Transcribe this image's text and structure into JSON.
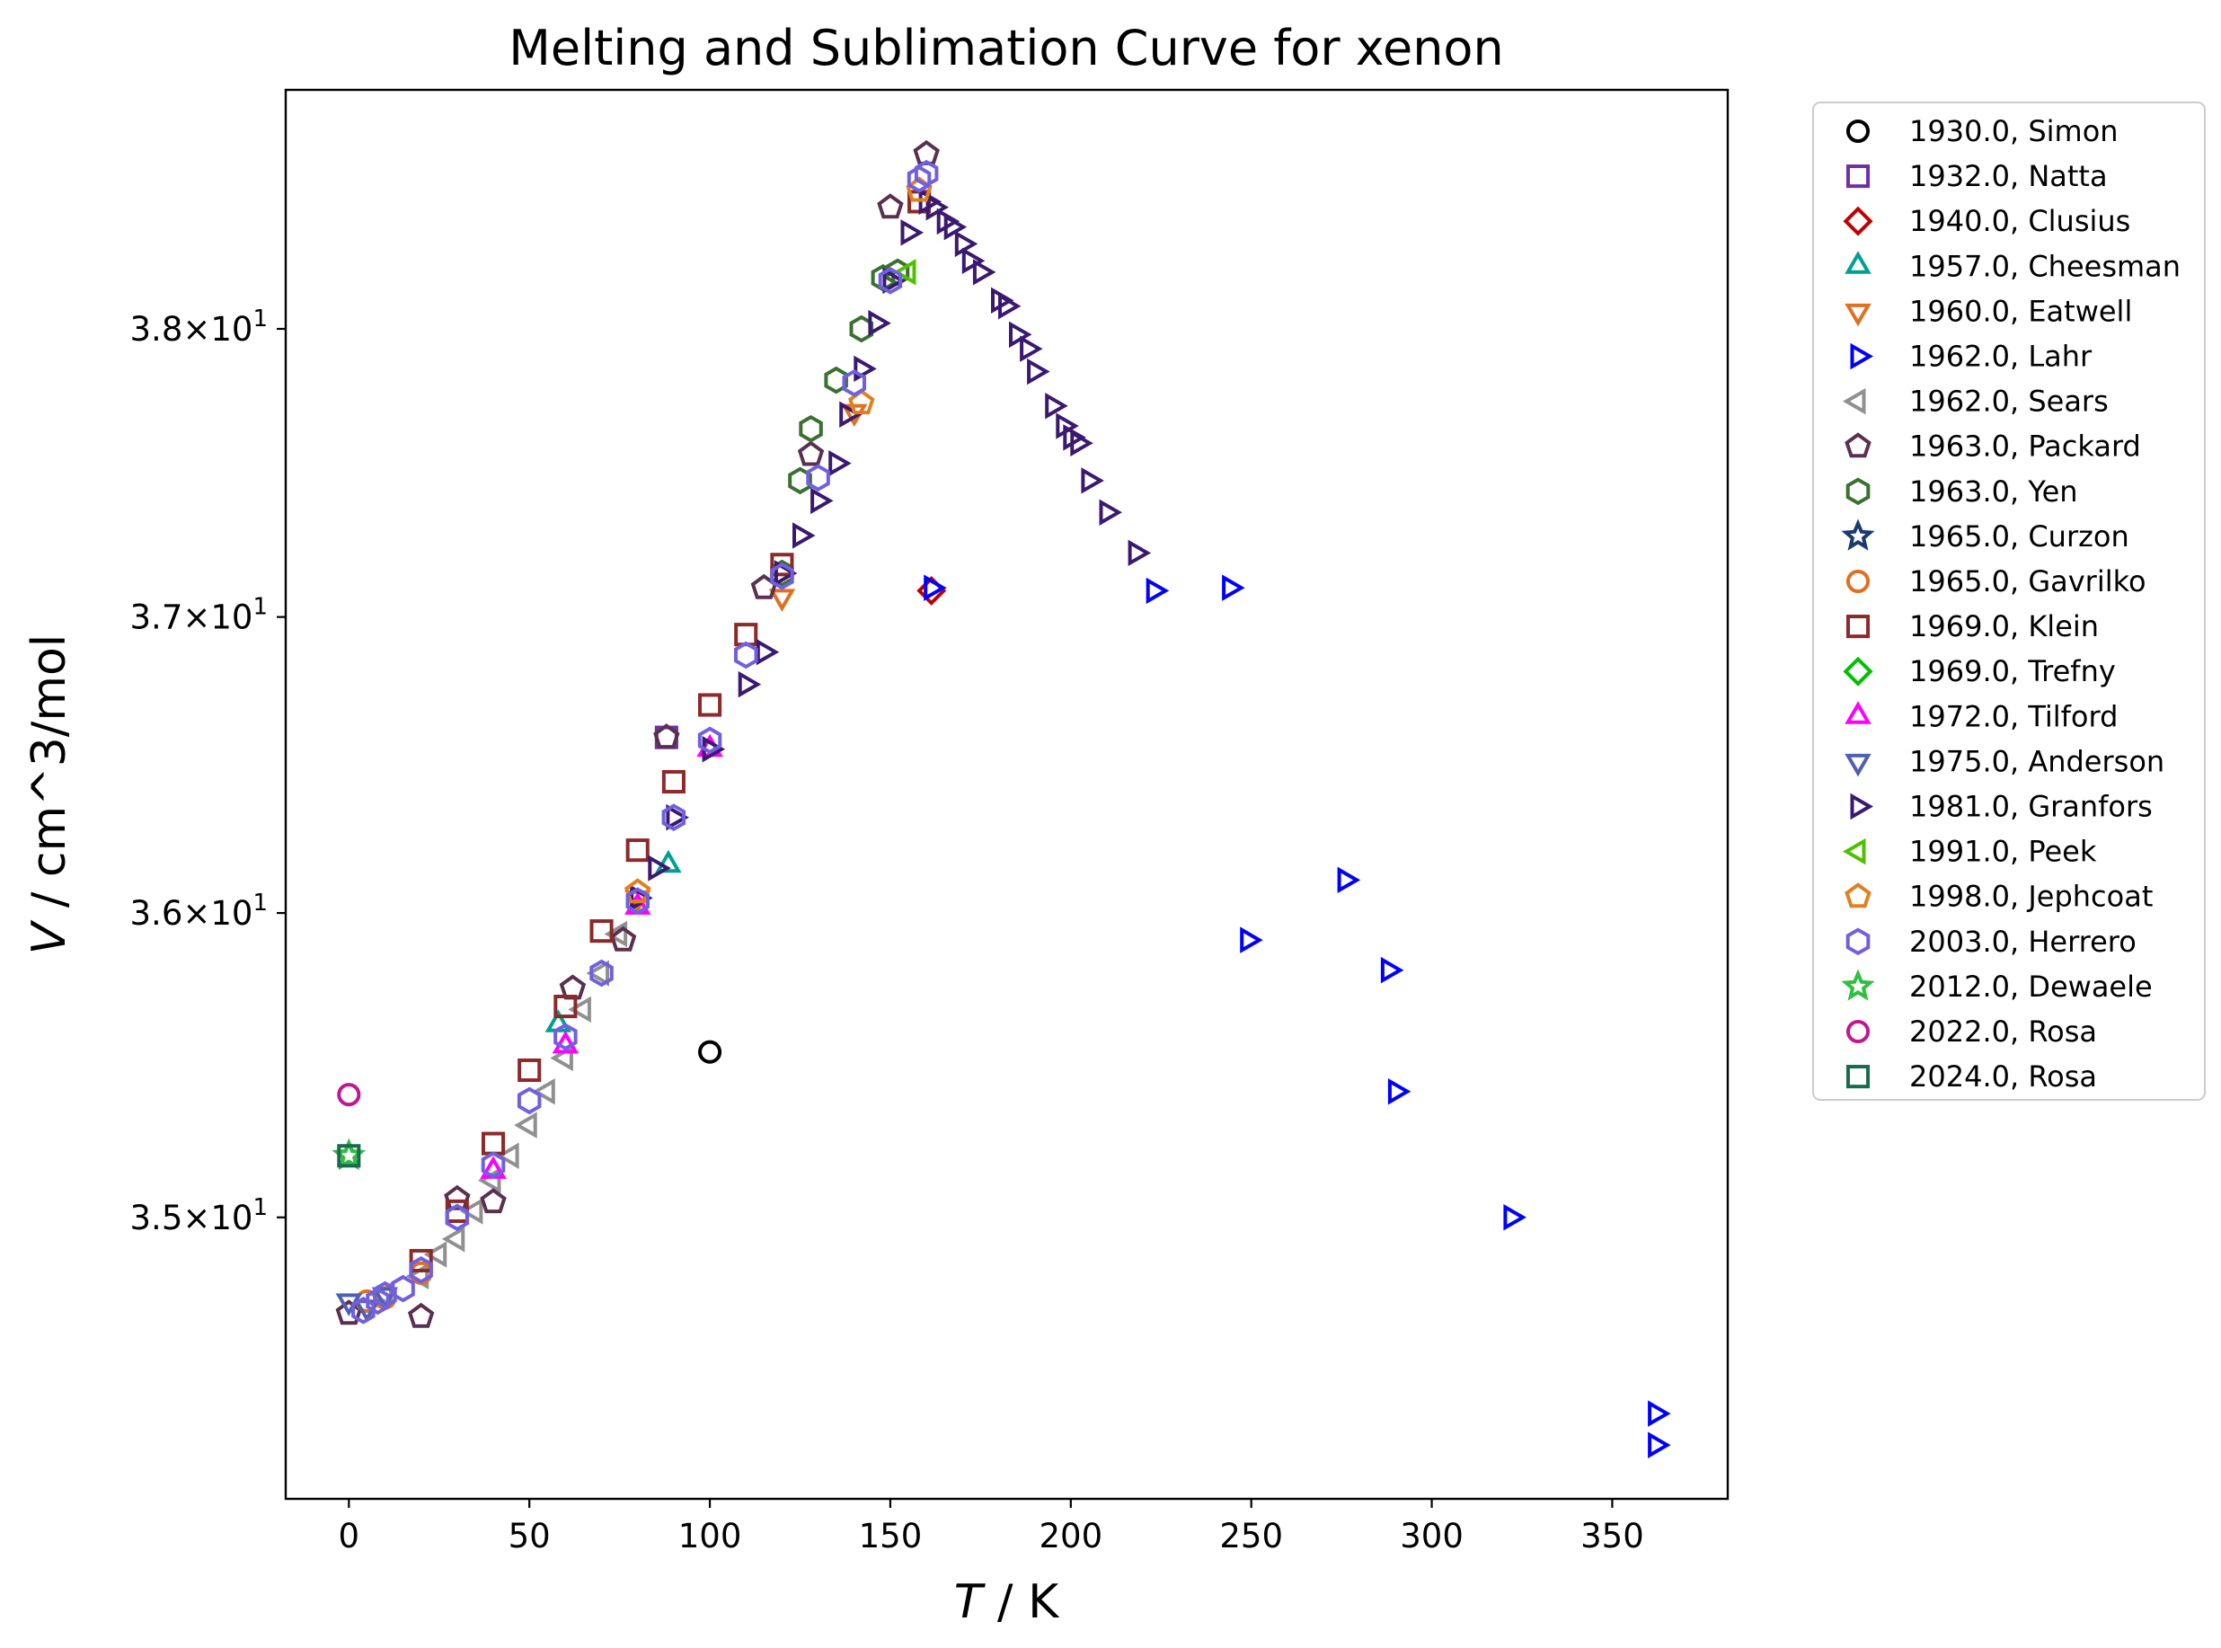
{
  "chart_data": {
    "type": "scatter",
    "title": "Melting and Sublimation Curve for xenon",
    "xlabel_var": "T",
    "xlabel_unit": " / K",
    "ylabel_var": "V",
    "ylabel_unit": " / cm^3/mol",
    "y_scale": "log",
    "xlim": [
      -17.5,
      382
    ],
    "ylim": [
      34.1,
      38.85
    ],
    "grid": false,
    "legend_position": "outside-right",
    "x_ticks": [
      0,
      50,
      100,
      150,
      200,
      250,
      300,
      350
    ],
    "y_ticks": [
      {
        "value": 35,
        "mantissa": "3.5",
        "exp": "1"
      },
      {
        "value": 36,
        "mantissa": "3.6",
        "exp": "1"
      },
      {
        "value": 37,
        "mantissa": "3.7",
        "exp": "1"
      },
      {
        "value": 38,
        "mantissa": "3.8",
        "exp": "1"
      }
    ],
    "series": [
      {
        "name": "1930.0, Simon",
        "marker": "circle",
        "color": "#000000",
        "points": [
          [
            100,
            35.54
          ]
        ]
      },
      {
        "name": "1932.0, Natta",
        "marker": "square",
        "color": "#7030a0",
        "points": [
          [
            88,
            36.59
          ]
        ]
      },
      {
        "name": "1940.0, Clusius",
        "marker": "diamond",
        "color": "#c00000",
        "points": [
          [
            161.4,
            37.09
          ]
        ]
      },
      {
        "name": "1957.0, Cheesman",
        "marker": "triangle-up",
        "color": "#00a090",
        "points": [
          [
            58,
            35.63
          ],
          [
            88.5,
            36.16
          ]
        ]
      },
      {
        "name": "1960.0, Eatwell",
        "marker": "triangle-down",
        "color": "#e07020",
        "points": [
          [
            80,
            36.05
          ],
          [
            120,
            37.07
          ],
          [
            140,
            37.71
          ]
        ]
      },
      {
        "name": "1962.0, Lahr",
        "marker": "triangle-right",
        "color": "#0000ff",
        "points": [
          [
            161.4,
            37.1
          ],
          [
            223,
            37.09
          ],
          [
            244,
            37.1
          ],
          [
            276,
            36.11
          ],
          [
            249,
            35.91
          ],
          [
            288,
            35.81
          ],
          [
            290,
            35.41
          ],
          [
            322,
            35.0
          ],
          [
            362,
            34.37
          ],
          [
            362,
            34.27
          ]
        ]
      },
      {
        "name": "1962.0, Sears",
        "marker": "triangle-left",
        "color": "#909090",
        "points": [
          [
            10,
            34.75
          ],
          [
            20,
            34.81
          ],
          [
            25,
            34.88
          ],
          [
            30,
            34.93
          ],
          [
            35,
            35.02
          ],
          [
            40,
            35.12
          ],
          [
            45,
            35.2
          ],
          [
            50,
            35.3
          ],
          [
            55,
            35.41
          ],
          [
            60,
            35.52
          ],
          [
            65,
            35.68
          ],
          [
            70,
            35.8
          ],
          [
            75,
            35.93
          ]
        ]
      },
      {
        "name": "1963.0, Packard",
        "marker": "pentagon",
        "color": "#5a3050",
        "points": [
          [
            0,
            34.69
          ],
          [
            20,
            34.68
          ],
          [
            30,
            35.06
          ],
          [
            40,
            35.05
          ],
          [
            62,
            35.75
          ],
          [
            76,
            35.91
          ],
          [
            88,
            36.59
          ],
          [
            115,
            37.1
          ],
          [
            128,
            37.56
          ],
          [
            150,
            38.43
          ],
          [
            160,
            38.62
          ]
        ]
      },
      {
        "name": "1963.0, Yen",
        "marker": "hexagon",
        "color": "#3a7030",
        "points": [
          [
            120,
            37.15
          ],
          [
            125,
            37.47
          ],
          [
            128,
            37.65
          ],
          [
            135,
            37.82
          ],
          [
            142,
            38.0
          ],
          [
            148,
            38.18
          ],
          [
            152,
            38.2
          ]
        ]
      },
      {
        "name": "1965.0, Curzon",
        "marker": "star",
        "color": "#1a3a70",
        "points": [
          [
            0,
            35.2
          ]
        ]
      },
      {
        "name": "1965.0, Gavrilko",
        "marker": "circle",
        "color": "#e07020",
        "points": [
          [
            5,
            34.73
          ],
          [
            10,
            34.74
          ],
          [
            20,
            34.82
          ]
        ]
      },
      {
        "name": "1969.0, Klein",
        "marker": "square",
        "color": "#8b2a2a",
        "points": [
          [
            20,
            34.86
          ],
          [
            30,
            35.02
          ],
          [
            40,
            35.24
          ],
          [
            50,
            35.48
          ],
          [
            60,
            35.69
          ],
          [
            70,
            35.94
          ],
          [
            80,
            36.21
          ],
          [
            90,
            36.44
          ],
          [
            100,
            36.7
          ],
          [
            110,
            36.94
          ],
          [
            120,
            37.18
          ],
          [
            158,
            38.45
          ]
        ]
      },
      {
        "name": "1969.0, Trefny",
        "marker": "diamond",
        "color": "#00c000",
        "points": []
      },
      {
        "name": "1972.0, Tilford",
        "marker": "triangle-up",
        "color": "#ff00ff",
        "points": [
          [
            40,
            35.15
          ],
          [
            60,
            35.56
          ],
          [
            80,
            36.02
          ],
          [
            100,
            36.55
          ]
        ]
      },
      {
        "name": "1975.0, Anderson",
        "marker": "triangle-down",
        "color": "#5060b0",
        "points": [
          [
            0,
            34.73
          ],
          [
            5,
            34.71
          ],
          [
            10,
            34.75
          ]
        ]
      },
      {
        "name": "1981.0, Granfors",
        "marker": "triangle-right",
        "color": "#3a1a70",
        "points": [
          [
            80,
            36.05
          ],
          [
            85,
            36.15
          ],
          [
            90,
            36.32
          ],
          [
            100,
            36.55
          ],
          [
            110,
            36.77
          ],
          [
            115,
            36.88
          ],
          [
            120,
            37.15
          ],
          [
            125,
            37.28
          ],
          [
            130,
            37.4
          ],
          [
            135,
            37.53
          ],
          [
            138,
            37.7
          ],
          [
            142,
            37.86
          ],
          [
            146,
            38.02
          ],
          [
            150,
            38.17
          ],
          [
            155,
            38.34
          ],
          [
            160,
            38.45
          ],
          [
            162,
            38.43
          ],
          [
            165,
            38.38
          ],
          [
            167,
            38.36
          ],
          [
            170,
            38.3
          ],
          [
            172,
            38.24
          ],
          [
            175,
            38.2
          ],
          [
            180,
            38.1
          ],
          [
            182,
            38.08
          ],
          [
            185,
            37.98
          ],
          [
            188,
            37.93
          ],
          [
            190,
            37.85
          ],
          [
            195,
            37.73
          ],
          [
            198,
            37.66
          ],
          [
            200,
            37.62
          ],
          [
            202,
            37.6
          ],
          [
            205,
            37.47
          ],
          [
            210,
            37.36
          ],
          [
            218,
            37.22
          ]
        ]
      },
      {
        "name": "1991.0, Peek",
        "marker": "triangle-left",
        "color": "#50c000",
        "points": [
          [
            155,
            38.2
          ]
        ]
      },
      {
        "name": "1998.0, Jephcoat",
        "marker": "pentagon",
        "color": "#e08020",
        "points": [
          [
            80,
            36.07
          ],
          [
            142,
            37.74
          ],
          [
            158,
            38.49
          ]
        ]
      },
      {
        "name": "2003.0, Herrero",
        "marker": "hexagon",
        "color": "#7060e0",
        "points": [
          [
            4,
            34.7
          ],
          [
            8,
            34.73
          ],
          [
            10,
            34.75
          ],
          [
            15,
            34.77
          ],
          [
            20,
            34.83
          ],
          [
            30,
            35.0
          ],
          [
            40,
            35.17
          ],
          [
            50,
            35.38
          ],
          [
            60,
            35.59
          ],
          [
            70,
            35.8
          ],
          [
            80,
            36.04
          ],
          [
            90,
            36.32
          ],
          [
            100,
            36.58
          ],
          [
            110,
            36.87
          ],
          [
            120,
            37.14
          ],
          [
            130,
            37.48
          ],
          [
            140,
            37.81
          ],
          [
            150,
            38.17
          ],
          [
            158,
            38.53
          ],
          [
            160,
            38.55
          ]
        ]
      },
      {
        "name": "2012.0, Dewaele",
        "marker": "star",
        "color": "#30c040",
        "points": [
          [
            0,
            35.2
          ]
        ]
      },
      {
        "name": "2022.0, Rosa",
        "marker": "circle",
        "color": "#c01890",
        "points": [
          [
            0,
            35.4
          ]
        ]
      },
      {
        "name": "2024.0, Rosa",
        "marker": "square",
        "color": "#1a6a50",
        "points": [
          [
            0,
            35.2
          ]
        ]
      }
    ]
  }
}
